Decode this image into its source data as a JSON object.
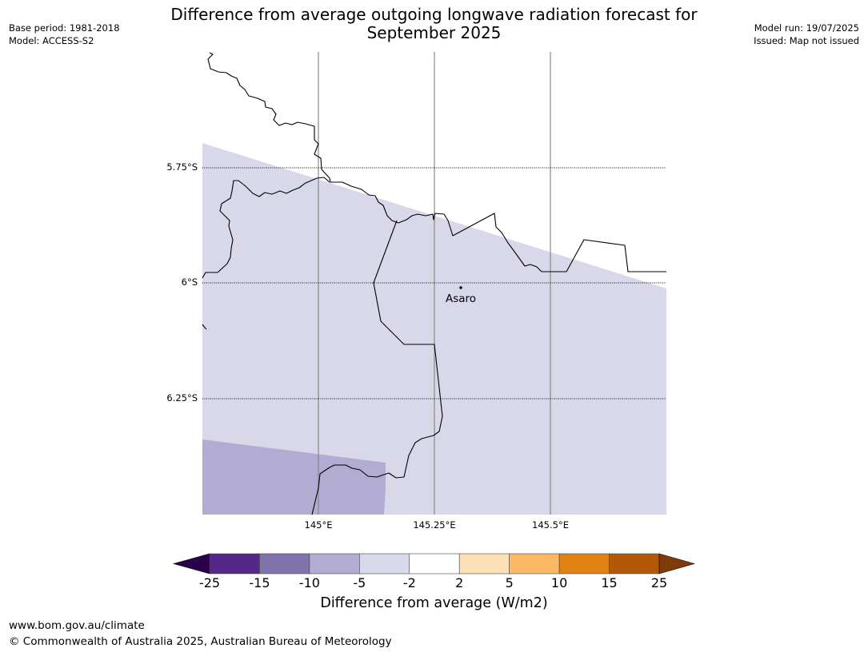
{
  "title_line1": "Difference from average outgoing longwave radiation forecast for",
  "title_line2": "September 2025",
  "meta_left": {
    "base_period": "Base period: 1981-2018",
    "model": "Model: ACCESS-S2"
  },
  "meta_right": {
    "model_run": "Model run: 19/07/2025",
    "issued": "Issued: Map not issued"
  },
  "map": {
    "lat_labels": [
      "5.75°S",
      "6°S",
      "6.25°S"
    ],
    "lon_labels": [
      "145°E",
      "145.25°E",
      "145.5°E"
    ],
    "places": [
      {
        "name": "Asaro",
        "lon": 145.275,
        "lat": -6.01
      }
    ],
    "regions": [
      {
        "category": "-5 to -2",
        "color": "#d8d8ea"
      },
      {
        "category": "-10 to -5",
        "color": "#b2acd2"
      }
    ]
  },
  "colorbar": {
    "label": "Difference from average (W/m2)",
    "ticks": [
      "-25",
      "-15",
      "-10",
      "-5",
      "-2",
      "2",
      "5",
      "10",
      "15",
      "25"
    ],
    "under_color": "#2d004b",
    "over_color": "#7f3b08",
    "colors": [
      "#542788",
      "#8073ac",
      "#b2abd2",
      "#d8daeb",
      "#ffffff",
      "#fee0b6",
      "#fdb863",
      "#e08214",
      "#b35806"
    ]
  },
  "footer": {
    "url": "www.bom.gov.au/climate",
    "copyright": "© Commonwealth of Australia 2025, Australian Bureau of Meteorology"
  }
}
